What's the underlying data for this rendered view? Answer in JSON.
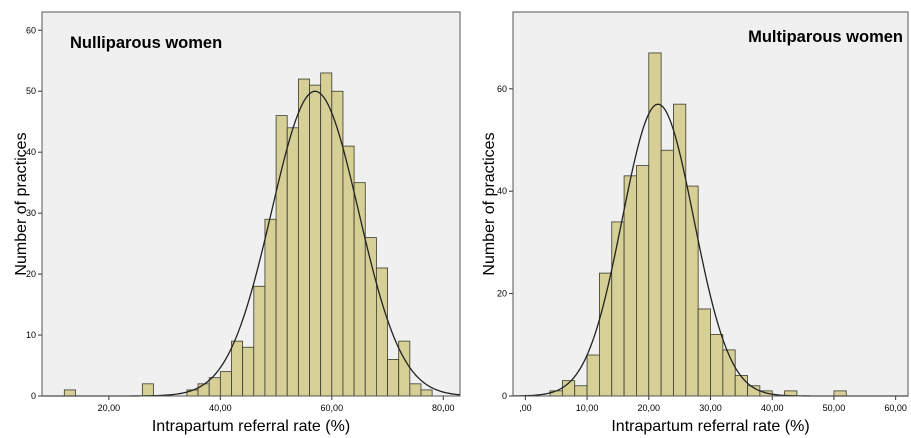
{
  "colors": {
    "plot_background": "#f0f0f0",
    "bar_fill": "#d6cf96",
    "bar_stroke": "#3a3a2a",
    "curve": "#222222"
  },
  "chart_data": [
    {
      "type": "bar",
      "title": "Nulliparous women",
      "xlabel": "Intrapartum referral rate (%)",
      "ylabel": "Number of practices",
      "xlim": [
        8,
        83
      ],
      "ylim": [
        0,
        63
      ],
      "x_ticks": [
        20,
        40,
        60,
        80
      ],
      "x_tick_labels": [
        "20,00",
        "40,00",
        "60,00",
        "80,00"
      ],
      "y_ticks": [
        0,
        10,
        20,
        30,
        40,
        50,
        60
      ],
      "y_tick_labels": [
        "0",
        "10",
        "20",
        "30",
        "40",
        "50",
        "60"
      ],
      "bin_width": 2,
      "bin_start": [
        12,
        26,
        34,
        36,
        38,
        40,
        42,
        44,
        46,
        48,
        50,
        52,
        54,
        56,
        58,
        60,
        62,
        64,
        66,
        68,
        70,
        72,
        74,
        76,
        78
      ],
      "values": [
        1,
        2,
        1,
        2,
        3,
        4,
        9,
        8,
        18,
        29,
        46,
        44,
        52,
        51,
        53,
        50,
        41,
        35,
        26,
        21,
        6,
        9,
        2,
        1,
        0
      ],
      "normal_curve": {
        "mean": 57,
        "sd": 7.8,
        "peak": 50
      }
    },
    {
      "type": "bar",
      "title": "Multiparous women",
      "xlabel": "Intrapartum referral rate (%)",
      "ylabel": "Number of practices",
      "xlim": [
        -2,
        62
      ],
      "ylim": [
        0,
        75
      ],
      "x_ticks": [
        0,
        10,
        20,
        30,
        40,
        50,
        60
      ],
      "x_tick_labels": [
        ",00",
        "10,00",
        "20,00",
        "30,00",
        "40,00",
        "50,00",
        "60,00"
      ],
      "y_ticks": [
        0,
        20,
        40,
        60
      ],
      "y_tick_labels": [
        "0",
        "20",
        "40",
        "60"
      ],
      "bin_width": 2,
      "bin_start": [
        4,
        6,
        8,
        10,
        12,
        14,
        16,
        18,
        20,
        22,
        24,
        26,
        28,
        30,
        32,
        34,
        36,
        38,
        40,
        42,
        50
      ],
      "values": [
        1,
        3,
        2,
        8,
        24,
        34,
        43,
        45,
        67,
        48,
        57,
        41,
        17,
        12,
        9,
        4,
        2,
        1,
        0,
        1,
        1
      ],
      "normal_curve": {
        "mean": 21.5,
        "sd": 5.8,
        "peak": 57
      }
    }
  ]
}
